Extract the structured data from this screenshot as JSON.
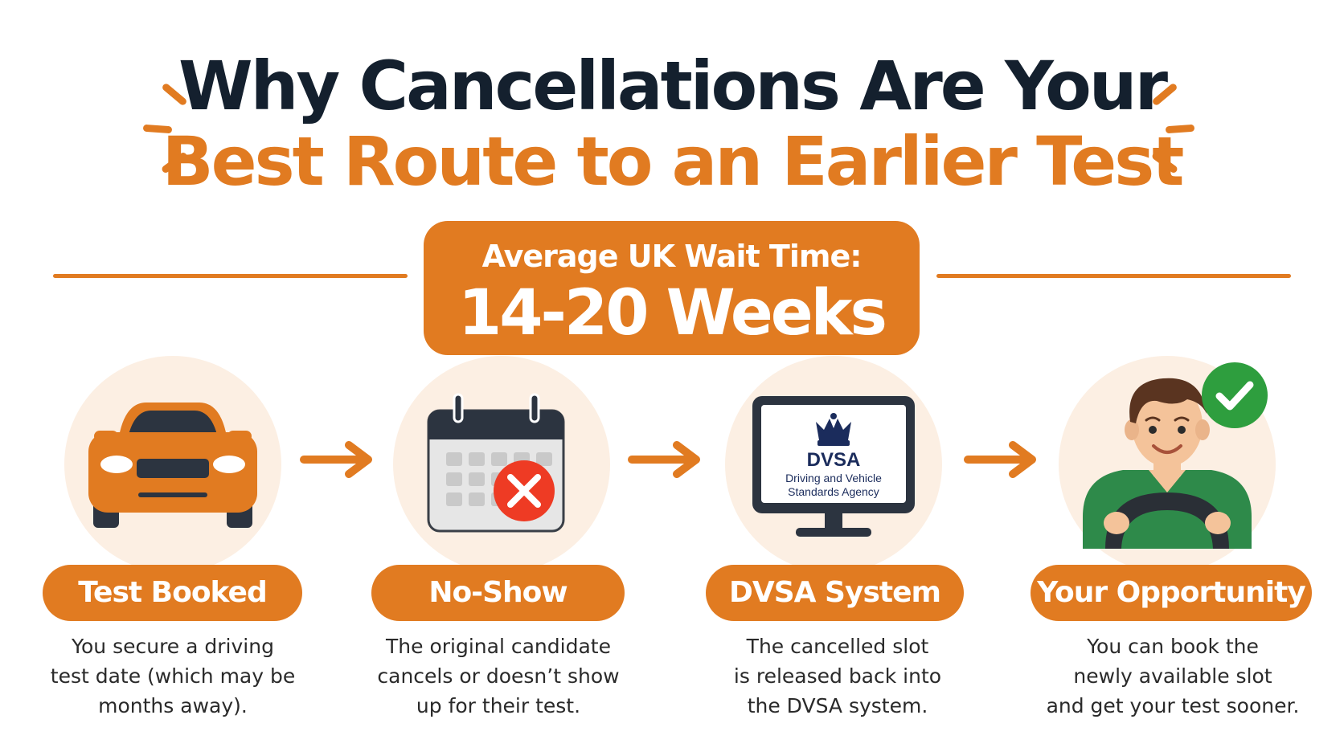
{
  "title": {
    "line1": "Why Cancellations Are Your",
    "line2": "Best Route to an Earlier Test"
  },
  "wait_time": {
    "label": "Average UK Wait Time:",
    "value": "14-20 Weeks"
  },
  "steps": [
    {
      "icon": "car-icon",
      "title": "Test Booked",
      "description": [
        "You secure a driving",
        "test date (which may be",
        "months away)."
      ]
    },
    {
      "icon": "calendar-cancel-icon",
      "title": "No-Show",
      "description": [
        "The original candidate",
        "cancels or doesn’t show",
        "up for their test."
      ]
    },
    {
      "icon": "dvsa-monitor-icon",
      "title": "DVSA System",
      "description": [
        "The cancelled slot",
        "is released back into",
        "the DVSA system."
      ]
    },
    {
      "icon": "happy-driver-icon",
      "title": "Your Opportunity",
      "description": [
        "You can book the",
        "newly available slot",
        "and get your test sooner."
      ]
    }
  ],
  "dvsa_screen": {
    "abbr": "DVSA",
    "line1": "Driving and Vehicle",
    "line2": "Standards Agency"
  },
  "colors": {
    "accent": "#e17b21",
    "title_dark": "#14202e",
    "circle_bg": "#fcefe3",
    "check_green": "#2e9e3e",
    "cancel_red": "#ee3b24"
  }
}
